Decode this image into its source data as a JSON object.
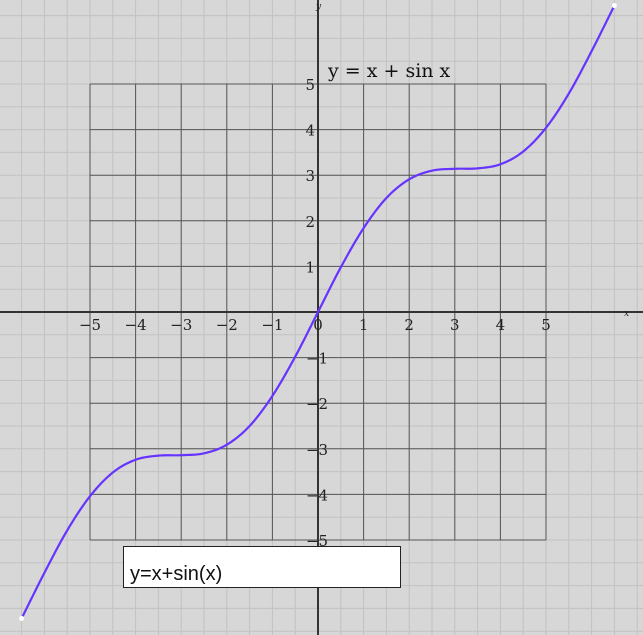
{
  "chart_data": {
    "type": "line",
    "title": "y = x + sin x",
    "xlabel": "x",
    "ylabel": "y",
    "xlim": [
      -6.5,
      6.6
    ],
    "ylim": [
      -6.6,
      6.8
    ],
    "grid": true,
    "frame_range": [
      -5,
      5
    ],
    "x_ticks": [
      "−5",
      "−4",
      "−3",
      "−2",
      "−1",
      "0",
      "1",
      "2",
      "3",
      "4",
      "5"
    ],
    "y_ticks_pos": [
      "1",
      "2",
      "3",
      "4",
      "5"
    ],
    "y_ticks_neg": [
      "−1",
      "−2",
      "−3",
      "−4",
      "−5"
    ],
    "series": [
      {
        "function": "x + sin(x)",
        "color": "#6633ff",
        "x": [
          -6.5,
          -6.0,
          -5.5,
          -5.0,
          -4.5,
          -4.0,
          -3.5,
          -3.0,
          -2.5,
          -2.0,
          -1.5,
          -1.0,
          -0.5,
          0.0,
          0.5,
          1.0,
          1.5,
          2.0,
          2.5,
          3.0,
          3.5,
          4.0,
          4.5,
          5.0,
          5.5,
          6.0,
          6.5
        ],
        "values": [
          -6.72,
          -5.72,
          -4.79,
          -4.04,
          -3.52,
          -3.24,
          -3.15,
          -3.14,
          -3.1,
          -2.91,
          -2.5,
          -1.84,
          -0.98,
          0.0,
          0.98,
          1.84,
          2.5,
          2.91,
          3.1,
          3.14,
          3.15,
          3.24,
          3.52,
          4.04,
          4.79,
          5.72,
          6.72
        ]
      }
    ]
  },
  "input": {
    "value": "y=x+sin(x)"
  },
  "colors": {
    "background": "#d7d7d7",
    "fine_grid": "#c2c2c2",
    "main_grid": "#555555",
    "axis": "#333333",
    "curve": "#6633ff"
  }
}
